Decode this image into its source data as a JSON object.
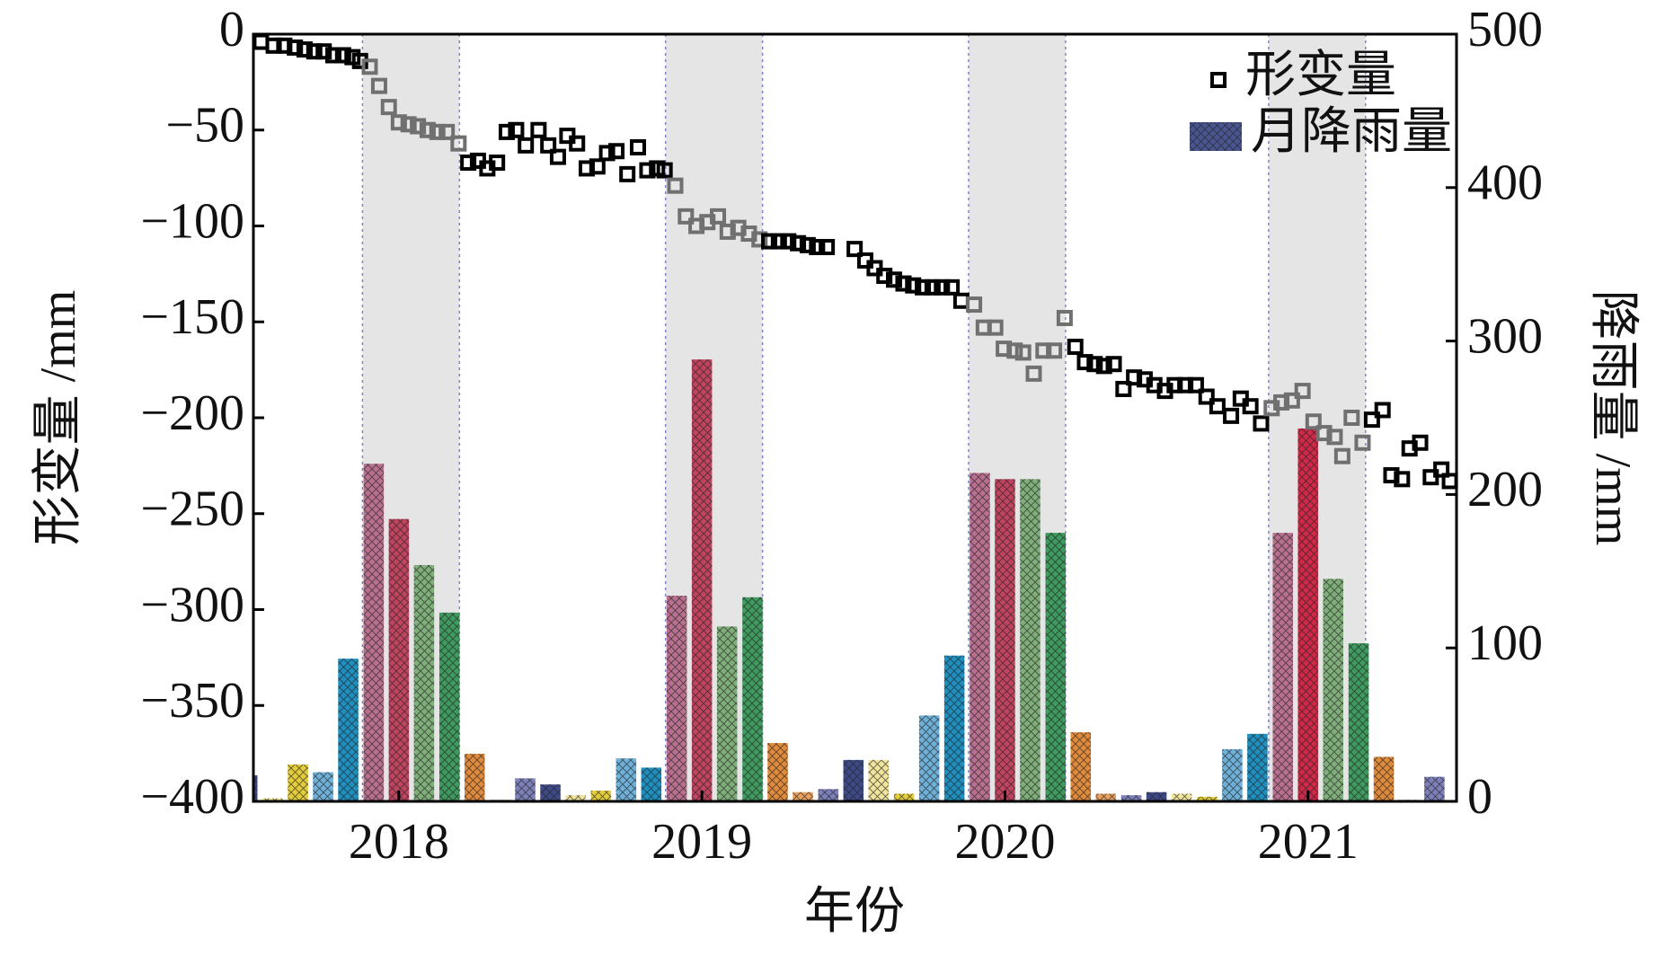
{
  "chart_data": {
    "type": "combo",
    "x_label": "年份",
    "y_label": "形变量 /mm",
    "y2_label": "降雨量 /mm",
    "xlim": [
      2017.52,
      2021.49
    ],
    "xticks": [
      2018,
      2019,
      2020,
      2021
    ],
    "ylim": [
      -400,
      0
    ],
    "yticks": [
      {
        "value": -400,
        "label": "−400"
      },
      {
        "value": -350,
        "label": "−350"
      },
      {
        "value": -300,
        "label": "−300"
      },
      {
        "value": -250,
        "label": "−250"
      },
      {
        "value": -200,
        "label": "−200"
      },
      {
        "value": -150,
        "label": "−150"
      },
      {
        "value": -100,
        "label": "−100"
      },
      {
        "value": -50,
        "label": "−50"
      },
      0
    ],
    "y2lim": [
      0,
      500
    ],
    "y2ticks": [
      0,
      100,
      200,
      300,
      400,
      500
    ],
    "shaded_spans": [
      [
        2017.88,
        2018.2
      ],
      [
        2018.88,
        2019.2
      ],
      [
        2019.88,
        2020.2
      ],
      [
        2020.87,
        2021.19
      ]
    ],
    "shade_color": "#e5e5e5",
    "span_line_color": "#8080d0",
    "legend": "upper right",
    "series": [
      {
        "name": "形变量",
        "type": "scatter",
        "color": "#000000",
        "span_color": "#707070",
        "x": [
          2017.545,
          2017.587,
          2017.622,
          2017.657,
          2017.689,
          2017.721,
          2017.752,
          2017.784,
          2017.816,
          2017.847,
          2017.872,
          2017.904,
          2017.935,
          2017.967,
          2018.0,
          2018.032,
          2018.063,
          2018.095,
          2018.127,
          2018.158,
          2018.197,
          2018.229,
          2018.261,
          2018.292,
          2018.324,
          2018.356,
          2018.387,
          2018.419,
          2018.461,
          2018.493,
          2018.525,
          2018.556,
          2018.588,
          2018.62,
          2018.655,
          2018.687,
          2018.718,
          2018.754,
          2018.789,
          2018.82,
          2018.852,
          2018.877,
          2018.912,
          2018.947,
          2018.982,
          2019.018,
          2019.053,
          2019.085,
          2019.12,
          2019.155,
          2019.19,
          2019.222,
          2019.254,
          2019.285,
          2019.317,
          2019.349,
          2019.38,
          2019.412,
          2019.504,
          2019.539,
          2019.57,
          2019.602,
          2019.634,
          2019.665,
          2019.697,
          2019.729,
          2019.761,
          2019.792,
          2019.824,
          2019.856,
          2019.898,
          2019.93,
          2019.968,
          2019.996,
          2020.032,
          2020.06,
          2020.095,
          2020.127,
          2020.162,
          2020.197,
          2020.232,
          2020.264,
          2020.296,
          2020.327,
          2020.359,
          2020.391,
          2020.426,
          2020.461,
          2020.493,
          2020.528,
          2020.56,
          2020.595,
          2020.63,
          2020.665,
          2020.701,
          2020.746,
          2020.778,
          2020.81,
          2020.845,
          2020.88,
          2020.912,
          2020.947,
          2020.982,
          2021.018,
          2021.053,
          2021.088,
          2021.113,
          2021.144,
          2021.18,
          2021.211,
          2021.246,
          2021.275,
          2021.31,
          2021.335,
          2021.37,
          2021.405,
          2021.44,
          2021.468
        ],
        "values": [
          -4,
          -6,
          -6,
          -7,
          -8,
          -9,
          -9,
          -11,
          -11,
          -12,
          -14,
          -17,
          -27,
          -38,
          -46,
          -47,
          -48,
          -50,
          -51,
          -51,
          -57,
          -67,
          -66,
          -70,
          -67,
          -51,
          -50,
          -58,
          -50,
          -58,
          -64,
          -53,
          -57,
          -70,
          -69,
          -62,
          -61,
          -73,
          -59,
          -71,
          -70,
          -71,
          -79,
          -95,
          -100,
          -98,
          -95,
          -103,
          -101,
          -104,
          -107,
          -108,
          -108,
          -108,
          -109,
          -110,
          -111,
          -111,
          -112,
          -118,
          -122,
          -126,
          -128,
          -130,
          -131,
          -132,
          -132,
          -132,
          -132,
          -139,
          -141,
          -153,
          -153,
          -164,
          -165,
          -166,
          -177,
          -165,
          -165,
          -148,
          -163,
          -171,
          -172,
          -173,
          -172,
          -185,
          -179,
          -180,
          -183,
          -186,
          -183,
          -183,
          -183,
          -189,
          -194,
          -199,
          -190,
          -194,
          -203,
          -195,
          -192,
          -191,
          -186,
          -202,
          -208,
          -210,
          -220,
          -200,
          -213,
          -201,
          -196,
          -230,
          -232,
          -216,
          -213,
          -231,
          -227,
          -233
        ]
      },
      {
        "name": "月降雨量",
        "type": "bar",
        "axis": "y2",
        "color": "#4a5590",
        "x": [
          2017.5,
          2017.583,
          2017.667,
          2017.75,
          2017.833,
          2017.917,
          2018,
          2018.083,
          2018.167,
          2018.25,
          2018.333,
          2018.417,
          2018.5,
          2018.583,
          2018.667,
          2018.75,
          2018.833,
          2018.917,
          2019,
          2019.083,
          2019.167,
          2019.25,
          2019.333,
          2019.417,
          2019.5,
          2019.583,
          2019.667,
          2019.75,
          2019.833,
          2019.917,
          2020,
          2020.083,
          2020.167,
          2020.25,
          2020.333,
          2020.417,
          2020.5,
          2020.583,
          2020.667,
          2020.75,
          2020.833,
          2020.917,
          2021,
          2021.083,
          2021.167,
          2021.25,
          2021.333,
          2021.417
        ],
        "values": [
          17,
          2,
          24,
          19,
          93,
          220,
          184,
          154,
          123,
          31,
          1,
          15,
          11,
          4,
          7,
          28,
          22,
          134,
          288,
          114,
          133,
          38,
          6,
          8,
          27,
          27,
          5,
          56,
          95,
          214,
          210,
          210,
          175,
          45,
          5,
          4,
          6,
          5,
          3,
          34,
          44,
          175,
          243,
          145,
          103,
          29,
          1,
          16
        ],
        "colors": [
          "#3d4a86",
          "#f0e49c",
          "#e3cc3a",
          "#6fb0d8",
          "#1f8fc0",
          "#b8708e",
          "#c04360",
          "#7fae7a",
          "#3e9a5e",
          "#e08a3c",
          "#e8a060",
          "#7d80b8",
          "#3d4a86",
          "#f0e49c",
          "#e3cc3a",
          "#6fb0d8",
          "#1f8fc0",
          "#b8708e",
          "#c04360",
          "#7fae7a",
          "#3e9a5e",
          "#e08a3c",
          "#e8a060",
          "#7d80b8",
          "#3d4a86",
          "#f0e49c",
          "#e3cc3a",
          "#6fb0d8",
          "#1f8fc0",
          "#b8708e",
          "#c04360",
          "#7fae7a",
          "#3e9a5e",
          "#e08a3c",
          "#e8a060",
          "#7d80b8",
          "#3d4a86",
          "#f0e49c",
          "#e3cc3a",
          "#6fb0d8",
          "#1f8fc0",
          "#b8708e",
          "#d02848",
          "#7fae7a",
          "#3e9a5e",
          "#e08a3c",
          "#e8a060",
          "#7d80b8"
        ]
      }
    ]
  }
}
